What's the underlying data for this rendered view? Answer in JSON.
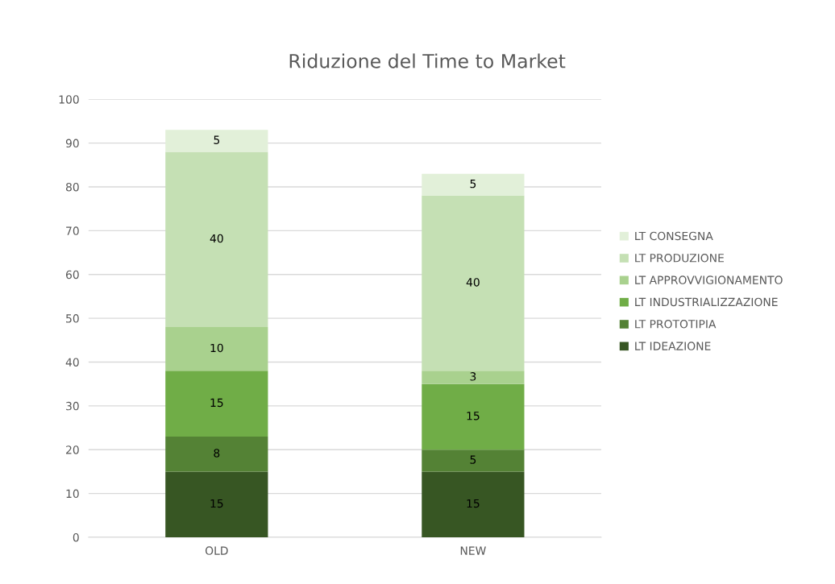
{
  "chart_data": {
    "type": "bar",
    "title": "Riduzione del Time to Market",
    "stacked": true,
    "categories": [
      "OLD",
      "NEW"
    ],
    "series": [
      {
        "name": "LT IDEAZIONE",
        "color": "#375623",
        "values": [
          15,
          15
        ]
      },
      {
        "name": "LT PROTOTIPIA",
        "color": "#548235",
        "values": [
          8,
          5
        ]
      },
      {
        "name": "LT INDUSTRIALIZZAZIONE",
        "color": "#70ad47",
        "values": [
          15,
          15
        ]
      },
      {
        "name": "LT APPROVVIGIONAMENTO",
        "color": "#a9d18e",
        "values": [
          10,
          3
        ]
      },
      {
        "name": "LT PRODUZIONE",
        "color": "#c5e0b4",
        "values": [
          40,
          40
        ]
      },
      {
        "name": "LT CONSEGNA",
        "color": "#e2f0d9",
        "values": [
          5,
          5
        ]
      }
    ],
    "ylim": [
      0,
      100
    ],
    "yticks": [
      0,
      10,
      20,
      30,
      40,
      50,
      60,
      70,
      80,
      90,
      100
    ],
    "grid": "y",
    "legend": "right",
    "data_labels": true
  }
}
